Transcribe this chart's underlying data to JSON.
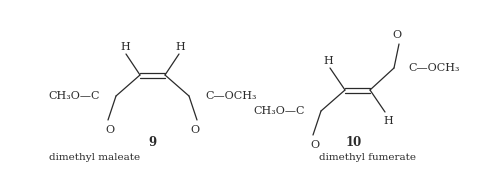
{
  "fig_width": 4.79,
  "fig_height": 1.71,
  "dpi": 100,
  "bg_color": "#ffffff",
  "text_color": "#2a2a2a",
  "font_size": 8.0,
  "label_9": "9",
  "label_10": "10",
  "name_9": "dimethyl maleate",
  "name_10": "dimethyl fumerate"
}
